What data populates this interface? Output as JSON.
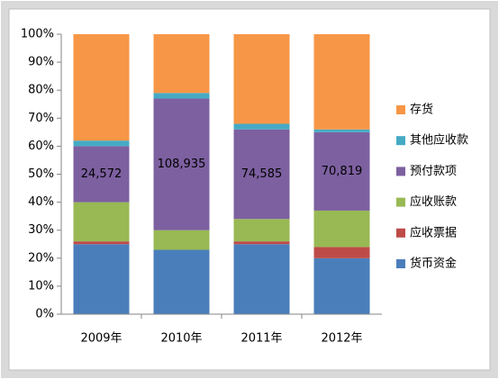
{
  "chart_data": {
    "type": "stacked_bar_percent",
    "categories": [
      "2009年",
      "2010年",
      "2011年",
      "2012年"
    ],
    "series": [
      {
        "name": "货币资金",
        "color": "#4a7ebb",
        "values": [
          25,
          23,
          25,
          20
        ]
      },
      {
        "name": "应收票据",
        "color": "#be4b48",
        "values": [
          1,
          0,
          1,
          4
        ]
      },
      {
        "name": "应收账款",
        "color": "#98b954",
        "values": [
          14,
          7,
          8,
          13
        ]
      },
      {
        "name": "预付款项",
        "color": "#7d60a0",
        "values": [
          20,
          47,
          32,
          28
        ],
        "annotations": [
          "24,572",
          "108,935",
          "74,585",
          "70,819"
        ]
      },
      {
        "name": "其他应收款",
        "color": "#46aac5",
        "values": [
          2,
          2,
          2,
          1
        ]
      },
      {
        "name": "存货",
        "color": "#f79646",
        "values": [
          38,
          21,
          32,
          34
        ]
      }
    ],
    "ylim": [
      0,
      100
    ],
    "yticks": [
      {
        "value": 0,
        "label": "0%"
      },
      {
        "value": 10,
        "label": "10%"
      },
      {
        "value": 20,
        "label": "20%"
      },
      {
        "value": 30,
        "label": "30%"
      },
      {
        "value": 40,
        "label": "40%"
      },
      {
        "value": 50,
        "label": "50%"
      },
      {
        "value": 60,
        "label": "60%"
      },
      {
        "value": 70,
        "label": "70%"
      },
      {
        "value": 80,
        "label": "80%"
      },
      {
        "value": 90,
        "label": "90%"
      },
      {
        "value": 100,
        "label": "100%"
      }
    ],
    "grid": false,
    "legend": "right"
  }
}
